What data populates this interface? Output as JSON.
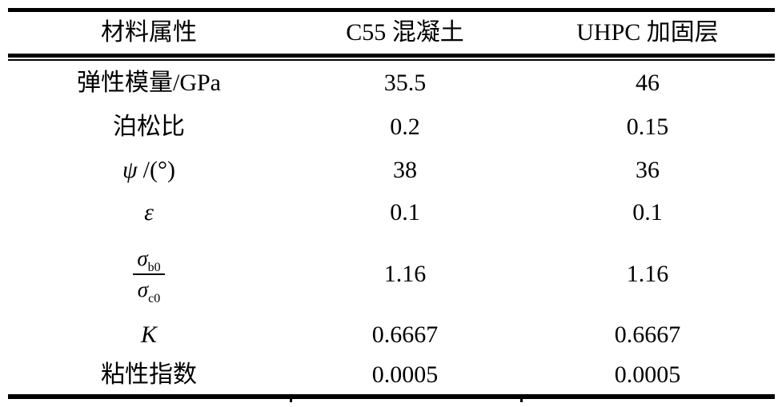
{
  "header": {
    "col_property": "材料属性",
    "col_c55": "C55 混凝土",
    "col_uhpc": "UHPC 加固层"
  },
  "rows": {
    "elastic_modulus": {
      "label": "弹性模量/GPa",
      "c55": "35.5",
      "uhpc": "46"
    },
    "poisson_ratio": {
      "label": "泊松比",
      "c55": "0.2",
      "uhpc": "0.15"
    },
    "dilation_angle": {
      "symbol": "ψ",
      "unit": "/(°)",
      "c55": "38",
      "uhpc": "36"
    },
    "eccentricity": {
      "symbol": "ε",
      "c55": "0.1",
      "uhpc": "0.1"
    },
    "stress_ratio": {
      "num_base": "σ",
      "num_sub": "b0",
      "den_base": "σ",
      "den_sub": "c0",
      "c55": "1.16",
      "uhpc": "1.16"
    },
    "k_factor": {
      "symbol": "K",
      "c55": "0.6667",
      "uhpc": "0.6667"
    },
    "viscosity_index": {
      "label": "粘性指数",
      "c55": "0.0005",
      "uhpc": "0.0005"
    }
  }
}
